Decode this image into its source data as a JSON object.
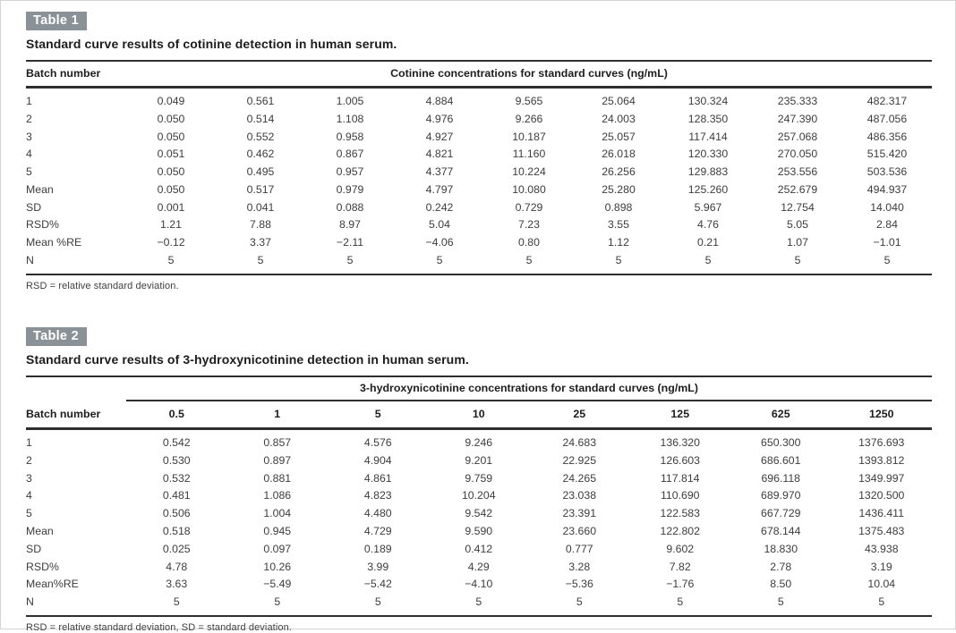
{
  "table1": {
    "label": "Table 1",
    "caption": "Standard curve results of cotinine detection in human serum.",
    "batch_header": "Batch number",
    "span_header": "Cotinine concentrations for standard curves (ng/mL)",
    "rows": [
      {
        "label": "1",
        "values": [
          "0.049",
          "0.561",
          "1.005",
          "4.884",
          "9.565",
          "25.064",
          "130.324",
          "235.333",
          "482.317"
        ]
      },
      {
        "label": "2",
        "values": [
          "0.050",
          "0.514",
          "1.108",
          "4.976",
          "9.266",
          "24.003",
          "128.350",
          "247.390",
          "487.056"
        ]
      },
      {
        "label": "3",
        "values": [
          "0.050",
          "0.552",
          "0.958",
          "4.927",
          "10.187",
          "25.057",
          "117.414",
          "257.068",
          "486.356"
        ]
      },
      {
        "label": "4",
        "values": [
          "0.051",
          "0.462",
          "0.867",
          "4.821",
          "11.160",
          "26.018",
          "120.330",
          "270.050",
          "515.420"
        ]
      },
      {
        "label": "5",
        "values": [
          "0.050",
          "0.495",
          "0.957",
          "4.377",
          "10.224",
          "26.256",
          "129.883",
          "253.556",
          "503.536"
        ]
      },
      {
        "label": "Mean",
        "values": [
          "0.050",
          "0.517",
          "0.979",
          "4.797",
          "10.080",
          "25.280",
          "125.260",
          "252.679",
          "494.937"
        ]
      },
      {
        "label": "SD",
        "values": [
          "0.001",
          "0.041",
          "0.088",
          "0.242",
          "0.729",
          "0.898",
          "5.967",
          "12.754",
          "14.040"
        ]
      },
      {
        "label": "RSD%",
        "values": [
          "1.21",
          "7.88",
          "8.97",
          "5.04",
          "7.23",
          "3.55",
          "4.76",
          "5.05",
          "2.84"
        ]
      },
      {
        "label": "Mean %RE",
        "values": [
          "−0.12",
          "3.37",
          "−2.11",
          "−4.06",
          "0.80",
          "1.12",
          "0.21",
          "1.07",
          "−1.01"
        ]
      },
      {
        "label": "N",
        "values": [
          "5",
          "5",
          "5",
          "5",
          "5",
          "5",
          "5",
          "5",
          "5"
        ]
      }
    ],
    "footnote": "RSD = relative standard deviation."
  },
  "table2": {
    "label": "Table 2",
    "caption": "Standard curve results of 3-hydroxynicotinine detection in human serum.",
    "batch_header": "Batch number",
    "span_header": "3-hydroxynicotinine concentrations for standard curves (ng/mL)",
    "conc_headers": [
      "0.5",
      "1",
      "5",
      "10",
      "25",
      "125",
      "625",
      "1250"
    ],
    "rows": [
      {
        "label": "1",
        "values": [
          "0.542",
          "0.857",
          "4.576",
          "9.246",
          "24.683",
          "136.320",
          "650.300",
          "1376.693"
        ]
      },
      {
        "label": "2",
        "values": [
          "0.530",
          "0.897",
          "4.904",
          "9.201",
          "22.925",
          "126.603",
          "686.601",
          "1393.812"
        ]
      },
      {
        "label": "3",
        "values": [
          "0.532",
          "0.881",
          "4.861",
          "9.759",
          "24.265",
          "117.814",
          "696.118",
          "1349.997"
        ]
      },
      {
        "label": "4",
        "values": [
          "0.481",
          "1.086",
          "4.823",
          "10.204",
          "23.038",
          "110.690",
          "689.970",
          "1320.500"
        ]
      },
      {
        "label": "5",
        "values": [
          "0.506",
          "1.004",
          "4.480",
          "9.542",
          "23.391",
          "122.583",
          "667.729",
          "1436.411"
        ]
      },
      {
        "label": "Mean",
        "values": [
          "0.518",
          "0.945",
          "4.729",
          "9.590",
          "23.660",
          "122.802",
          "678.144",
          "1375.483"
        ]
      },
      {
        "label": "SD",
        "values": [
          "0.025",
          "0.097",
          "0.189",
          "0.412",
          "0.777",
          "9.602",
          "18.830",
          "43.938"
        ]
      },
      {
        "label": "RSD%",
        "values": [
          "4.78",
          "10.26",
          "3.99",
          "4.29",
          "3.28",
          "7.82",
          "2.78",
          "3.19"
        ]
      },
      {
        "label": "Mean%RE",
        "values": [
          "3.63",
          "−5.49",
          "−5.42",
          "−4.10",
          "−5.36",
          "−1.76",
          "8.50",
          "10.04"
        ]
      },
      {
        "label": "N",
        "values": [
          "5",
          "5",
          "5",
          "5",
          "5",
          "5",
          "5",
          "5"
        ]
      }
    ],
    "footnote": "RSD = relative standard deviation, SD = standard deviation."
  },
  "colors": {
    "label_badge_bg": "#8a9197",
    "rule": "#2e2e2e",
    "text": "#3d3d3d"
  }
}
